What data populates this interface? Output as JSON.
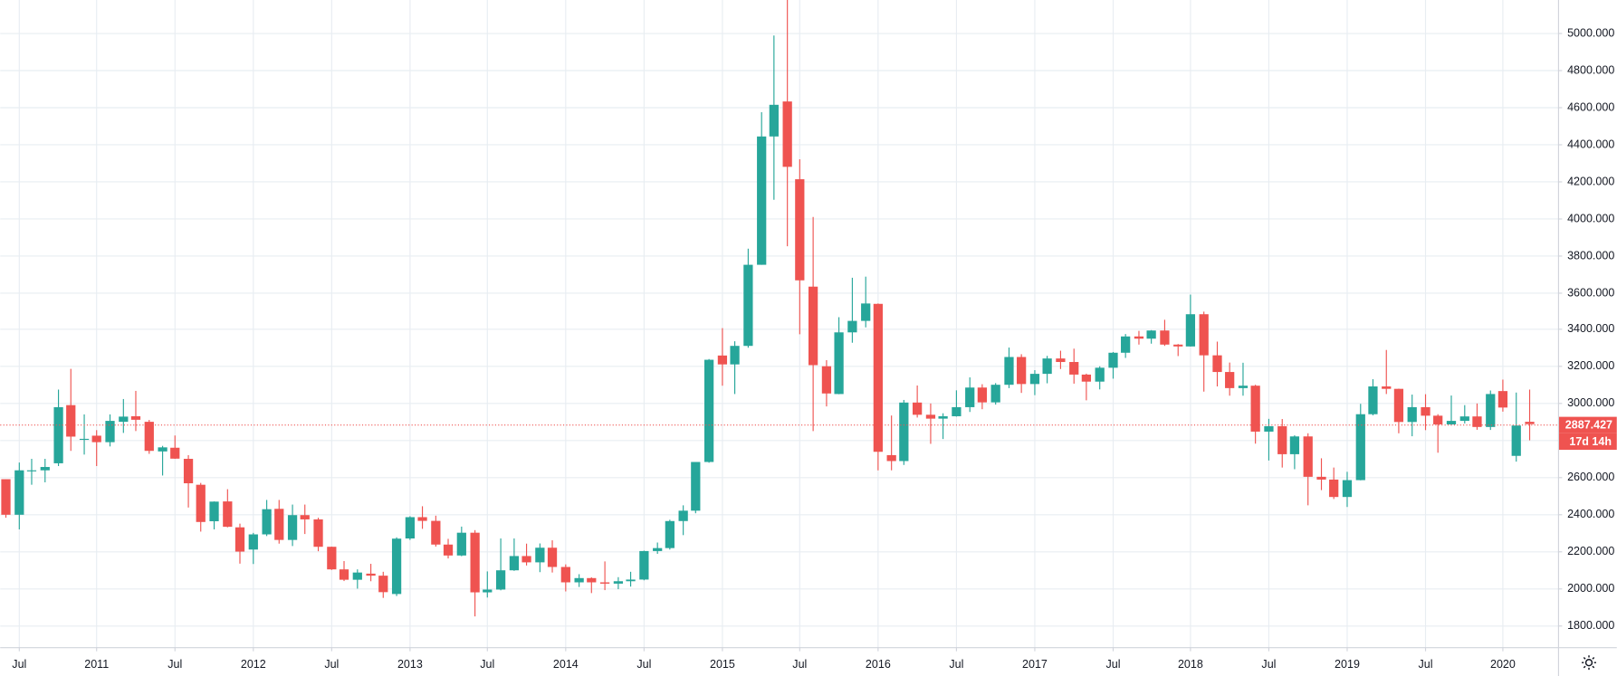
{
  "chart_data": {
    "type": "candlestick",
    "categories": [
      null,
      "Jul",
      null,
      null,
      null,
      null,
      null,
      "2011",
      null,
      null,
      null,
      null,
      null,
      "Jul",
      null,
      null,
      null,
      null,
      null,
      "2012",
      null,
      null,
      null,
      null,
      null,
      "Jul",
      null,
      null,
      null,
      null,
      null,
      "2013",
      null,
      null,
      null,
      null,
      null,
      "Jul",
      null,
      null,
      null,
      null,
      null,
      "2014",
      null,
      null,
      null,
      null,
      null,
      "Jul",
      null,
      null,
      null,
      null,
      null,
      "2015",
      null,
      null,
      null,
      null,
      null,
      "Jul",
      null,
      null,
      null,
      null,
      null,
      "2016",
      null,
      null,
      null,
      null,
      null,
      "Jul",
      null,
      null,
      null,
      null,
      null,
      "2017",
      null,
      null,
      null,
      null,
      null,
      "Jul",
      null,
      null,
      null,
      null,
      null,
      "2018",
      null,
      null,
      null,
      null,
      null,
      "Jul",
      null,
      null,
      null,
      null,
      null,
      "2019",
      null,
      null,
      null,
      null,
      null,
      "Jul",
      null,
      null,
      null,
      null,
      null,
      "2020",
      null,
      null
    ],
    "open": [
      2590,
      2398,
      2638,
      2638,
      2676,
      2990,
      2808,
      2825,
      2790,
      2900,
      2930,
      2900,
      2740,
      2760,
      2700,
      2560,
      2363,
      2470,
      2330,
      2210,
      2292,
      2430,
      2262,
      2396,
      2373,
      2225,
      2103,
      2047,
      2080,
      2069,
      1970,
      2270,
      2385,
      2365,
      2237,
      2178,
      2301,
      1979,
      1994,
      2098,
      2175,
      2141,
      2220,
      2116,
      2033,
      2056,
      2033,
      2026,
      2039,
      2048,
      2202,
      2218,
      2364,
      2420,
      2683,
      3258,
      3210,
      3310,
      3748,
      4441,
      4630,
      4210,
      3630,
      3200,
      3050,
      3383,
      3445,
      3537,
      2720,
      2688,
      3004,
      2938,
      2917,
      2930,
      2979,
      3085,
      3005,
      3100,
      3250,
      3104,
      3159,
      3242,
      3223,
      3155,
      3117,
      3192,
      3273,
      3361,
      3349,
      3393,
      3317,
      3307,
      3481,
      3259,
      3169,
      3082,
      3095,
      2847,
      2876,
      2725,
      2821,
      2603,
      2588,
      2494,
      2585,
      2941,
      3091,
      3078,
      2899,
      2979,
      2933,
      2886,
      2905,
      2929,
      2872,
      3066,
      2716,
      2900
    ],
    "high": [
      2590,
      2680,
      2700,
      2700,
      3074,
      3186,
      2940,
      2855,
      2940,
      3023,
      3067,
      2910,
      2770,
      2826,
      2720,
      2570,
      2470,
      2536,
      2350,
      2300,
      2478,
      2478,
      2453,
      2453,
      2382,
      2226,
      2148,
      2103,
      2133,
      2090,
      2276,
      2390,
      2444,
      2393,
      2268,
      2334,
      2315,
      2092,
      2270,
      2270,
      2242,
      2243,
      2260,
      2130,
      2077,
      2060,
      2146,
      2061,
      2090,
      2204,
      2248,
      2371,
      2449,
      2683,
      3239,
      3406,
      3335,
      3835,
      4572,
      4986,
      5178,
      4318,
      4006,
      3233,
      3465,
      3678,
      3684,
      3539,
      2934,
      3018,
      3096,
      2999,
      2946,
      3070,
      3140,
      3103,
      3109,
      3301,
      3265,
      3179,
      3256,
      3284,
      3295,
      3160,
      3200,
      3277,
      3374,
      3391,
      3395,
      3451,
      3320,
      3587,
      3495,
      3333,
      3220,
      3219,
      3100,
      2916,
      2915,
      2827,
      2838,
      2703,
      2653,
      2630,
      2997,
      3130,
      3288,
      3079,
      3047,
      3049,
      2941,
      3042,
      2990,
      2999,
      3069,
      3128,
      3058,
      3074
    ],
    "low": [
      2382,
      2319,
      2560,
      2573,
      2661,
      2743,
      2723,
      2661,
      2767,
      2840,
      2850,
      2727,
      2610,
      2700,
      2437,
      2307,
      2319,
      2330,
      2134,
      2132,
      2283,
      2242,
      2229,
      2294,
      2201,
      2100,
      2040,
      1999,
      2039,
      1949,
      1959,
      2262,
      2322,
      2226,
      2162,
      2174,
      1849,
      1951,
      1990,
      2095,
      2124,
      2088,
      2086,
      1984,
      2008,
      1975,
      1991,
      1996,
      2010,
      2044,
      2187,
      2210,
      2288,
      2406,
      2679,
      3095,
      3050,
      3300,
      3748,
      4099,
      3848,
      3373,
      2850,
      2983,
      3049,
      3327,
      3410,
      2638,
      2638,
      2667,
      2923,
      2781,
      2807,
      2928,
      2953,
      2968,
      2993,
      3082,
      3056,
      3044,
      3108,
      3185,
      3106,
      3016,
      3075,
      3133,
      3245,
      3317,
      3322,
      3310,
      3255,
      3306,
      3063,
      3091,
      3041,
      3041,
      2782,
      2691,
      2653,
      2644,
      2449,
      2531,
      2483,
      2440,
      2584,
      2935,
      3050,
      2838,
      2822,
      2855,
      2733,
      2880,
      2891,
      2857,
      2856,
      2955,
      2685,
      2800
    ],
    "close": [
      2398,
      2638,
      2638,
      2656,
      2979,
      2820,
      2808,
      2790,
      2905,
      2928,
      2911,
      2743,
      2762,
      2701,
      2568,
      2359,
      2469,
      2333,
      2199,
      2292,
      2428,
      2262,
      2396,
      2373,
      2225,
      2103,
      2047,
      2086,
      2069,
      1980,
      2269,
      2385,
      2365,
      2237,
      2178,
      2301,
      1979,
      1994,
      2098,
      2175,
      2141,
      2220,
      2116,
      2033,
      2056,
      2033,
      2026,
      2039,
      2048,
      2202,
      2218,
      2364,
      2420,
      2683,
      3235,
      3210,
      3310,
      3748,
      4441,
      4612,
      4277,
      3664,
      3206,
      3053,
      3383,
      3445,
      3539,
      2738,
      2688,
      3004,
      2938,
      2917,
      2930,
      2979,
      3085,
      3005,
      3100,
      3250,
      3104,
      3159,
      3242,
      3223,
      3155,
      3117,
      3192,
      3273,
      3361,
      3349,
      3393,
      3317,
      3307,
      3481,
      3259,
      3169,
      3082,
      3095,
      2847,
      2876,
      2725,
      2821,
      2603,
      2588,
      2494,
      2585,
      2941,
      3091,
      3078,
      2899,
      2979,
      2933,
      2886,
      2905,
      2929,
      2872,
      3050,
      2977,
      2880,
      2887.427
    ],
    "up_color": "#26a69a",
    "down_color": "#ef5350",
    "ylim": [
      1683,
      5178
    ],
    "yticks": [
      {
        "value": 1800,
        "label": "1800.000"
      },
      {
        "value": 2000,
        "label": "2000.000"
      },
      {
        "value": 2200,
        "label": "2200.000"
      },
      {
        "value": 2400,
        "label": "2400.000"
      },
      {
        "value": 2600,
        "label": "2600.000"
      },
      {
        "value": 2800,
        "label": "2800.000"
      },
      {
        "value": 3000,
        "label": "3000.000"
      },
      {
        "value": 3200,
        "label": "3200.000"
      },
      {
        "value": 3400,
        "label": "3400.000"
      },
      {
        "value": 3600,
        "label": "3600.000"
      },
      {
        "value": 3800,
        "label": "3800.000"
      },
      {
        "value": 4000,
        "label": "4000.000"
      },
      {
        "value": 4200,
        "label": "4200.000"
      },
      {
        "value": 4400,
        "label": "4400.000"
      },
      {
        "value": 4600,
        "label": "4600.000"
      },
      {
        "value": 4800,
        "label": "4800.000"
      },
      {
        "value": 5000,
        "label": "5000.000"
      }
    ],
    "grid": true,
    "countdown": "17d 14h"
  }
}
